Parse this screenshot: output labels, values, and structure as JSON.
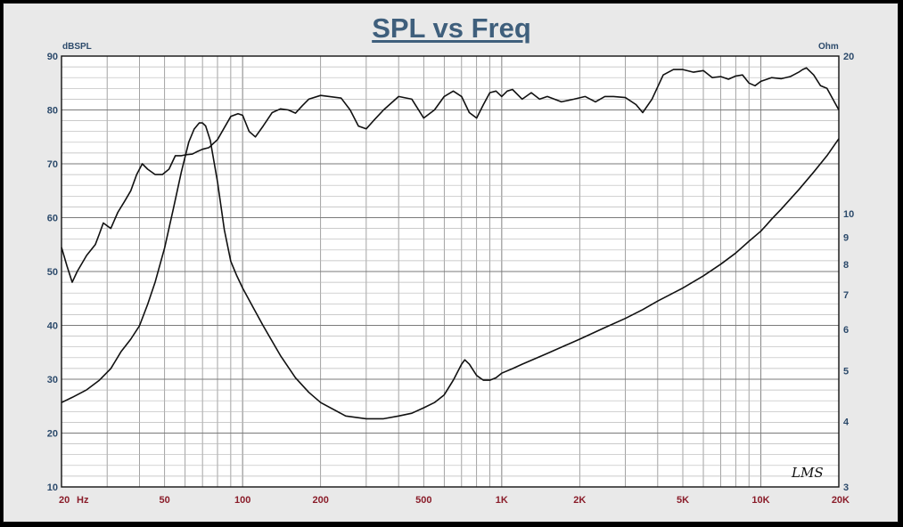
{
  "chart_data": {
    "type": "line",
    "title": "SPL vs Freq",
    "ylabel_left": "dBSPL",
    "ylabel_right": "Ohm",
    "x_unit_label": "Hz",
    "x_scale": "log",
    "xlim": [
      20,
      20000
    ],
    "ylim_left": [
      10,
      90
    ],
    "ylim_right": [
      3,
      20
    ],
    "y_right_scale": "log",
    "grid": true,
    "x_ticks": [
      {
        "value": 20,
        "label": "20"
      },
      {
        "value": 50,
        "label": "50"
      },
      {
        "value": 100,
        "label": "100"
      },
      {
        "value": 200,
        "label": "200"
      },
      {
        "value": 500,
        "label": "500"
      },
      {
        "value": 1000,
        "label": "1K"
      },
      {
        "value": 2000,
        "label": "2K"
      },
      {
        "value": 5000,
        "label": "5K"
      },
      {
        "value": 10000,
        "label": "10K"
      },
      {
        "value": 20000,
        "label": "20K"
      }
    ],
    "y_left_ticks": [
      10,
      20,
      30,
      40,
      50,
      60,
      70,
      80,
      90
    ],
    "y_right_ticks": [
      3,
      4,
      5,
      6,
      7,
      8,
      9,
      10,
      20
    ],
    "watermark": "LMS",
    "series": [
      {
        "axis": "left",
        "x": [
          20,
          21,
          22,
          23,
          25,
          27,
          28,
          29,
          31,
          33,
          35,
          37,
          39,
          41,
          43,
          46,
          49,
          52,
          55,
          58,
          61,
          64,
          67,
          70,
          74,
          80,
          90,
          96,
          100,
          106,
          112,
          120,
          130,
          140,
          150,
          160,
          170,
          180,
          200,
          240,
          260,
          280,
          300,
          320,
          350,
          400,
          450,
          500,
          550,
          600,
          650,
          700,
          750,
          800,
          850,
          900,
          950,
          1000,
          1050,
          1100,
          1200,
          1300,
          1400,
          1500,
          1700,
          1900,
          2100,
          2300,
          2500,
          2700,
          3000,
          3300,
          3500,
          3800,
          4200,
          4600,
          5000,
          5500,
          6000,
          6500,
          7000,
          7500,
          8000,
          8500,
          9000,
          9500,
          10000,
          11000,
          12000,
          13000,
          14000,
          14500,
          15000,
          16000,
          17000,
          18000,
          20000
        ],
        "y": [
          54.5,
          51,
          48,
          50,
          53,
          55,
          57,
          59,
          58,
          61,
          63,
          65,
          68,
          70,
          69,
          68,
          68,
          69,
          71.5,
          71.5,
          71.7,
          71.8,
          72.3,
          72.7,
          73,
          74.5,
          78.8,
          79.3,
          79,
          76,
          75,
          77,
          79.5,
          80.2,
          80,
          79.4,
          80.8,
          82,
          82.7,
          82.2,
          80,
          77,
          76.5,
          78,
          80,
          82.5,
          82,
          78.5,
          80,
          82.5,
          83.5,
          82.5,
          79.5,
          78.5,
          81,
          83.2,
          83.5,
          82.5,
          83.5,
          83.8,
          82,
          83.2,
          82,
          82.5,
          81.5,
          82,
          82.5,
          81.5,
          82.5,
          82.5,
          82.3,
          81,
          79.5,
          82,
          86.5,
          87.5,
          87.5,
          87,
          87.3,
          86,
          86.2,
          85.7,
          86.3,
          86.5,
          85,
          84.5,
          85.3,
          86,
          85.8,
          86.2,
          87,
          87.5,
          87.8,
          86.5,
          84.5,
          84,
          80
        ]
      },
      {
        "axis": "right",
        "x": [
          20,
          22,
          25,
          28,
          31,
          34,
          37,
          40,
          43,
          46,
          50,
          54,
          58,
          62,
          65,
          68,
          70,
          72,
          75,
          80,
          85,
          90,
          95,
          100,
          110,
          120,
          140,
          160,
          180,
          200,
          250,
          300,
          350,
          400,
          450,
          500,
          550,
          600,
          650,
          700,
          720,
          750,
          800,
          850,
          900,
          950,
          1000,
          1100,
          1200,
          1500,
          2000,
          2500,
          3000,
          3500,
          4000,
          5000,
          6000,
          7000,
          8000,
          9000,
          10000,
          10500,
          11000,
          12000,
          14000,
          16000,
          18000,
          20000
        ],
        "y": [
          4.35,
          4.45,
          4.6,
          4.8,
          5.05,
          5.45,
          5.75,
          6.1,
          6.7,
          7.4,
          8.6,
          10.2,
          12,
          13.7,
          14.5,
          14.9,
          14.9,
          14.7,
          13.8,
          11.5,
          9.3,
          8.1,
          7.6,
          7.2,
          6.6,
          6.1,
          5.35,
          4.85,
          4.55,
          4.35,
          4.1,
          4.05,
          4.05,
          4.1,
          4.15,
          4.25,
          4.35,
          4.5,
          4.8,
          5.15,
          5.25,
          5.15,
          4.9,
          4.8,
          4.8,
          4.85,
          4.95,
          5.05,
          5.15,
          5.4,
          5.75,
          6.05,
          6.3,
          6.55,
          6.8,
          7.2,
          7.6,
          8,
          8.4,
          8.85,
          9.25,
          9.5,
          9.75,
          10.2,
          11.1,
          12,
          12.9,
          13.9
        ]
      }
    ]
  }
}
